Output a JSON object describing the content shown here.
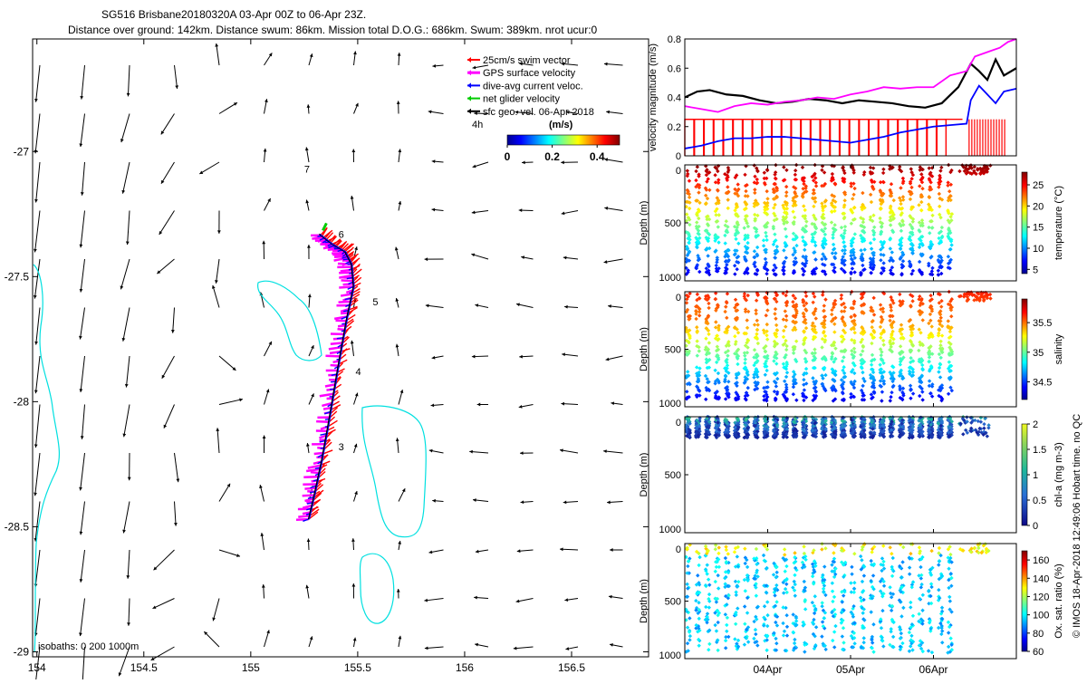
{
  "header": {
    "line1": "SG516 Brisbane20180320A 03-Apr 00Z to 06-Apr 23Z.",
    "line2": "Distance over ground: 142km. Distance swum: 86km. Mission total D.O.G.: 686km. Swum: 389km. nrot ucur:0"
  },
  "side_credit": "© IMOS 18-Apr-2018 12:49:06 Hobart time. no QC",
  "colors": {
    "swim_vector": "#ff0000",
    "gps_surface": "#ff00ff",
    "dive_avg": "#0000ff",
    "net_glider": "#00cc00",
    "sfc_geo": "#000000",
    "isobath": "#00e0e0"
  },
  "chart_data": [
    {
      "id": "map",
      "type": "scatter",
      "title": "",
      "xlabel": "",
      "ylabel": "",
      "xlim": [
        153.98,
        156.86
      ],
      "ylim": [
        -29.02,
        -26.55
      ],
      "xticks": [
        154,
        154.5,
        155,
        155.5,
        156,
        156.5
      ],
      "xtick_labels": [
        "154",
        "154.5",
        "155",
        "155.5",
        "156",
        "156.5"
      ],
      "yticks": [
        -27,
        -27.5,
        -28,
        -28.5,
        -29
      ],
      "ytick_labels": [
        "-27",
        "-27.5",
        "-28",
        "-28.5",
        "-29"
      ],
      "legend_position": "top-right",
      "legend": [
        {
          "name": "25cm/s swim vector",
          "color": "#ff0000"
        },
        {
          "name": "GPS surface velocity",
          "color": "#ff00ff"
        },
        {
          "name": "dive-avg current veloc.",
          "color": "#0000ff"
        },
        {
          "name": "net glider velocity",
          "color": "#00cc00"
        },
        {
          "name": "sfc geo. vel. 06-Apr-2018",
          "color": "#000000"
        }
      ],
      "legend_extra": "4h",
      "colorbar": {
        "label": "(m/s)",
        "ticks": [
          "0",
          "0.2",
          "0.4"
        ],
        "range": [
          0,
          0.5
        ]
      },
      "isobath_label": "isobaths: 0   200  1000m",
      "track": [
        [
          155.27,
          -28.47
        ],
        [
          155.3,
          -28.36
        ],
        [
          155.33,
          -28.24
        ],
        [
          155.36,
          -28.1
        ],
        [
          155.39,
          -27.95
        ],
        [
          155.42,
          -27.8
        ],
        [
          155.45,
          -27.66
        ],
        [
          155.48,
          -27.54
        ],
        [
          155.47,
          -27.45
        ],
        [
          155.44,
          -27.4
        ],
        [
          155.38,
          -27.37
        ],
        [
          155.32,
          -27.33
        ]
      ],
      "day_labels": [
        {
          "label": "3",
          "lon": 155.41,
          "lat": -28.18
        },
        {
          "label": "4",
          "lon": 155.49,
          "lat": -27.88
        },
        {
          "label": "5",
          "lon": 155.57,
          "lat": -27.6
        },
        {
          "label": "6",
          "lon": 155.41,
          "lat": -27.33
        },
        {
          "label": "7",
          "lon": 155.25,
          "lat": -27.07
        }
      ]
    },
    {
      "id": "velocity",
      "type": "line",
      "title": "",
      "xlabel": "",
      "ylabel": "velocity magnitude (m/s)",
      "xlim": [
        3.0,
        7.0
      ],
      "ylim": [
        0,
        0.8
      ],
      "yticks": [
        0,
        0.2,
        0.4,
        0.6,
        0.8
      ],
      "ytick_labels": [
        "0",
        "0.2",
        "0.4",
        "0.6",
        "0.8"
      ],
      "series": [
        {
          "color": "#000000",
          "x": [
            3.0,
            3.15,
            3.3,
            3.5,
            3.7,
            3.9,
            4.1,
            4.3,
            4.5,
            4.7,
            4.9,
            5.1,
            5.3,
            5.5,
            5.7,
            5.9,
            6.1,
            6.3,
            6.45,
            6.55,
            6.65,
            6.75,
            6.85,
            7.0
          ],
          "values": [
            0.4,
            0.44,
            0.45,
            0.42,
            0.41,
            0.38,
            0.36,
            0.37,
            0.39,
            0.38,
            0.36,
            0.38,
            0.37,
            0.36,
            0.34,
            0.33,
            0.36,
            0.47,
            0.63,
            0.58,
            0.52,
            0.66,
            0.55,
            0.6
          ]
        },
        {
          "color": "#ff00ff",
          "x": [
            3.0,
            3.2,
            3.4,
            3.6,
            3.8,
            4.0,
            4.2,
            4.4,
            4.6,
            4.8,
            5.0,
            5.2,
            5.4,
            5.6,
            5.8,
            6.0,
            6.2,
            6.4,
            6.5,
            6.6,
            6.7,
            6.8,
            6.9,
            7.0
          ],
          "values": [
            0.34,
            0.32,
            0.3,
            0.34,
            0.36,
            0.35,
            0.37,
            0.38,
            0.4,
            0.39,
            0.42,
            0.44,
            0.47,
            0.46,
            0.47,
            0.47,
            0.55,
            0.58,
            0.68,
            0.7,
            0.72,
            0.74,
            0.78,
            0.8
          ]
        },
        {
          "color": "#0000ff",
          "x": [
            3.0,
            3.2,
            3.4,
            3.6,
            3.8,
            4.0,
            4.2,
            4.4,
            4.6,
            4.8,
            5.0,
            5.2,
            5.4,
            5.6,
            5.8,
            6.0,
            6.2,
            6.4,
            6.45,
            6.55,
            6.65,
            6.75,
            6.85,
            7.0
          ],
          "values": [
            0.05,
            0.07,
            0.1,
            0.12,
            0.12,
            0.13,
            0.13,
            0.12,
            0.11,
            0.1,
            0.09,
            0.11,
            0.13,
            0.16,
            0.18,
            0.2,
            0.21,
            0.22,
            0.38,
            0.48,
            0.42,
            0.36,
            0.44,
            0.46
          ]
        },
        {
          "color": "#ff0000",
          "x": [
            3.0,
            6.85
          ],
          "values": [
            0.25,
            0.25
          ]
        }
      ]
    },
    {
      "id": "temperature",
      "type": "scatter",
      "ylabel": "Depth (m)",
      "xlim": [
        3.0,
        7.0
      ],
      "ylim": [
        1000,
        0
      ],
      "yticks": [
        0,
        500,
        1000
      ],
      "ytick_labels": [
        "0",
        "500",
        "1000"
      ],
      "colorbar": {
        "label": "temperature (°C)",
        "range": [
          4,
          28
        ],
        "ticks": [
          5,
          10,
          15,
          20,
          25
        ]
      },
      "profiles": {
        "count": 29,
        "start": 3.04,
        "step": 0.117,
        "max_depth": 950
      }
    },
    {
      "id": "salinity",
      "type": "scatter",
      "ylabel": "Depth (m)",
      "xlim": [
        3.0,
        7.0
      ],
      "ylim": [
        1000,
        0
      ],
      "yticks": [
        0,
        500,
        1000
      ],
      "ytick_labels": [
        "0",
        "500",
        "1000"
      ],
      "colorbar": {
        "label": "salinity",
        "range": [
          34.2,
          35.9
        ],
        "ticks": [
          34.5,
          35,
          35.5
        ]
      },
      "profiles": {
        "count": 29,
        "start": 3.04,
        "step": 0.117,
        "max_depth": 950
      }
    },
    {
      "id": "chla",
      "type": "scatter",
      "ylabel": "Depth (m)",
      "xlim": [
        3.0,
        7.0
      ],
      "ylim": [
        1000,
        0
      ],
      "yticks": [
        0,
        500,
        1000
      ],
      "ytick_labels": [
        "0",
        "500",
        "1000"
      ],
      "colorbar": {
        "label": "chl-a (mg m-3)",
        "range": [
          0,
          2
        ],
        "ticks": [
          0,
          0.5,
          1,
          1.5,
          2
        ]
      },
      "profiles": {
        "count": 29,
        "start": 3.04,
        "step": 0.117,
        "max_depth": 180
      }
    },
    {
      "id": "oxygen",
      "type": "scatter",
      "xlabel": "",
      "ylabel": "Depth (m)",
      "xlim": [
        3.0,
        7.0
      ],
      "ylim": [
        1000,
        0
      ],
      "yticks": [
        0,
        500,
        1000
      ],
      "ytick_labels": [
        "0",
        "500",
        "1000"
      ],
      "xticks": [
        4,
        5,
        6
      ],
      "xtick_labels": [
        "04Apr",
        "05Apr",
        "06Apr"
      ],
      "colorbar": {
        "label": "Ox. sat. ratio (%)",
        "range": [
          60,
          170
        ],
        "ticks": [
          60,
          80,
          100,
          120,
          140,
          160
        ]
      },
      "profiles": {
        "count": 29,
        "start": 3.04,
        "step": 0.117,
        "max_depth": 950
      }
    }
  ]
}
